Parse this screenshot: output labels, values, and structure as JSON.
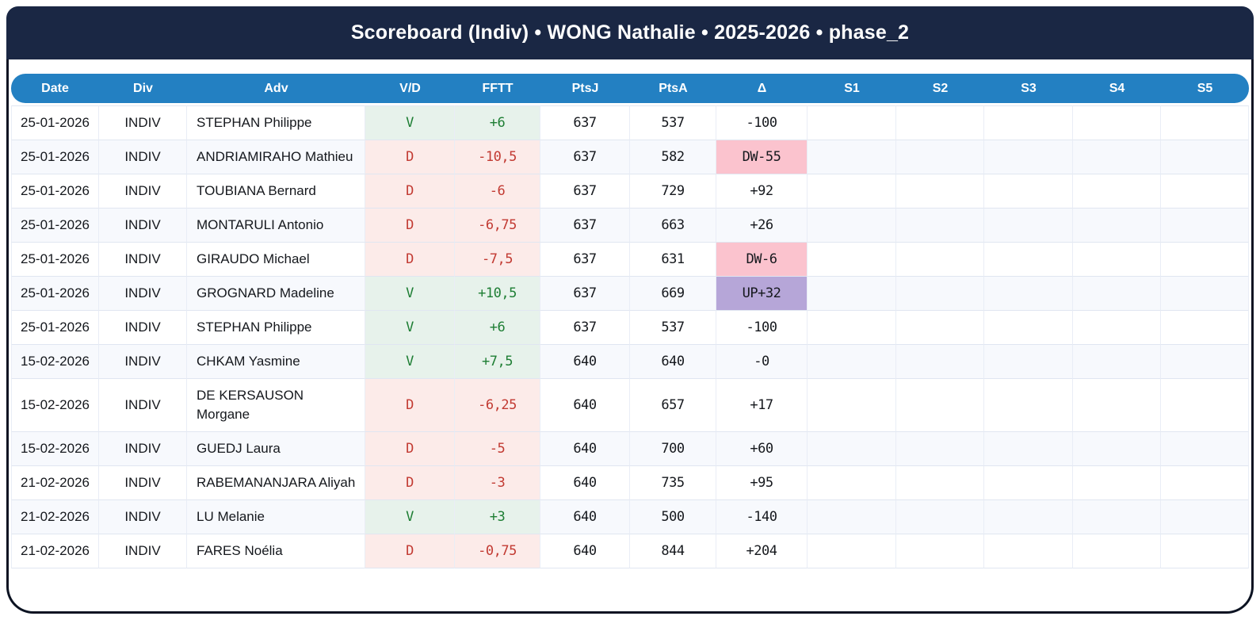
{
  "title": "Scoreboard (Indiv) • WONG Nathalie • 2025-2026 • phase_2",
  "table": {
    "columns": [
      "Date",
      "Div",
      "Adv",
      "V/D",
      "FFTT",
      "PtsJ",
      "PtsA",
      "Δ",
      "S1",
      "S2",
      "S3",
      "S4",
      "S5"
    ],
    "rows": [
      {
        "date": "25-01-2026",
        "div": "INDIV",
        "adv": "STEPHAN Philippe",
        "vd": "V",
        "fftt": "+6",
        "ptsj": "637",
        "ptsa": "537",
        "delta": "-100",
        "s1": "",
        "s2": "",
        "s3": "",
        "s4": "",
        "s5": ""
      },
      {
        "date": "25-01-2026",
        "div": "INDIV",
        "adv": "ANDRIAMIRAHO Mathieu",
        "vd": "D",
        "fftt": "-10,5",
        "ptsj": "637",
        "ptsa": "582",
        "delta": "DW-55",
        "s1": "",
        "s2": "",
        "s3": "",
        "s4": "",
        "s5": ""
      },
      {
        "date": "25-01-2026",
        "div": "INDIV",
        "adv": "TOUBIANA Bernard",
        "vd": "D",
        "fftt": "-6",
        "ptsj": "637",
        "ptsa": "729",
        "delta": "+92",
        "s1": "",
        "s2": "",
        "s3": "",
        "s4": "",
        "s5": ""
      },
      {
        "date": "25-01-2026",
        "div": "INDIV",
        "adv": "MONTARULI Antonio",
        "vd": "D",
        "fftt": "-6,75",
        "ptsj": "637",
        "ptsa": "663",
        "delta": "+26",
        "s1": "",
        "s2": "",
        "s3": "",
        "s4": "",
        "s5": ""
      },
      {
        "date": "25-01-2026",
        "div": "INDIV",
        "adv": "GIRAUDO Michael",
        "vd": "D",
        "fftt": "-7,5",
        "ptsj": "637",
        "ptsa": "631",
        "delta": "DW-6",
        "s1": "",
        "s2": "",
        "s3": "",
        "s4": "",
        "s5": ""
      },
      {
        "date": "25-01-2026",
        "div": "INDIV",
        "adv": "GROGNARD Madeline",
        "vd": "V",
        "fftt": "+10,5",
        "ptsj": "637",
        "ptsa": "669",
        "delta": "UP+32",
        "s1": "",
        "s2": "",
        "s3": "",
        "s4": "",
        "s5": ""
      },
      {
        "date": "25-01-2026",
        "div": "INDIV",
        "adv": "STEPHAN Philippe",
        "vd": "V",
        "fftt": "+6",
        "ptsj": "637",
        "ptsa": "537",
        "delta": "-100",
        "s1": "",
        "s2": "",
        "s3": "",
        "s4": "",
        "s5": ""
      },
      {
        "date": "15-02-2026",
        "div": "INDIV",
        "adv": "CHKAM Yasmine",
        "vd": "V",
        "fftt": "+7,5",
        "ptsj": "640",
        "ptsa": "640",
        "delta": "-0",
        "s1": "",
        "s2": "",
        "s3": "",
        "s4": "",
        "s5": ""
      },
      {
        "date": "15-02-2026",
        "div": "INDIV",
        "adv": "DE KERSAUSON Morgane",
        "vd": "D",
        "fftt": "-6,25",
        "ptsj": "640",
        "ptsa": "657",
        "delta": "+17",
        "s1": "",
        "s2": "",
        "s3": "",
        "s4": "",
        "s5": ""
      },
      {
        "date": "15-02-2026",
        "div": "INDIV",
        "adv": "GUEDJ Laura",
        "vd": "D",
        "fftt": "-5",
        "ptsj": "640",
        "ptsa": "700",
        "delta": "+60",
        "s1": "",
        "s2": "",
        "s3": "",
        "s4": "",
        "s5": ""
      },
      {
        "date": "21-02-2026",
        "div": "INDIV",
        "adv": "RABEMANANJARA Aliyah",
        "vd": "D",
        "fftt": "-3",
        "ptsj": "640",
        "ptsa": "735",
        "delta": "+95",
        "s1": "",
        "s2": "",
        "s3": "",
        "s4": "",
        "s5": ""
      },
      {
        "date": "21-02-2026",
        "div": "INDIV",
        "adv": "LU Melanie",
        "vd": "V",
        "fftt": "+3",
        "ptsj": "640",
        "ptsa": "500",
        "delta": "-140",
        "s1": "",
        "s2": "",
        "s3": "",
        "s4": "",
        "s5": ""
      },
      {
        "date": "21-02-2026",
        "div": "INDIV",
        "adv": "FARES Noélia",
        "vd": "D",
        "fftt": "-0,75",
        "ptsj": "640",
        "ptsa": "844",
        "delta": "+204",
        "s1": "",
        "s2": "",
        "s3": "",
        "s4": "",
        "s5": ""
      }
    ]
  },
  "colors": {
    "titlebar_bg": "#1a2744",
    "header_bg": "#2380c2",
    "stripe_bg": "#f7f9fd",
    "win_bg": "#e7f2eb",
    "win_text": "#1e7e34",
    "loss_bg": "#fcebe9",
    "loss_text": "#c23a32",
    "down_bg": "#fbc3ce",
    "up_bg": "#b6a6d8"
  }
}
